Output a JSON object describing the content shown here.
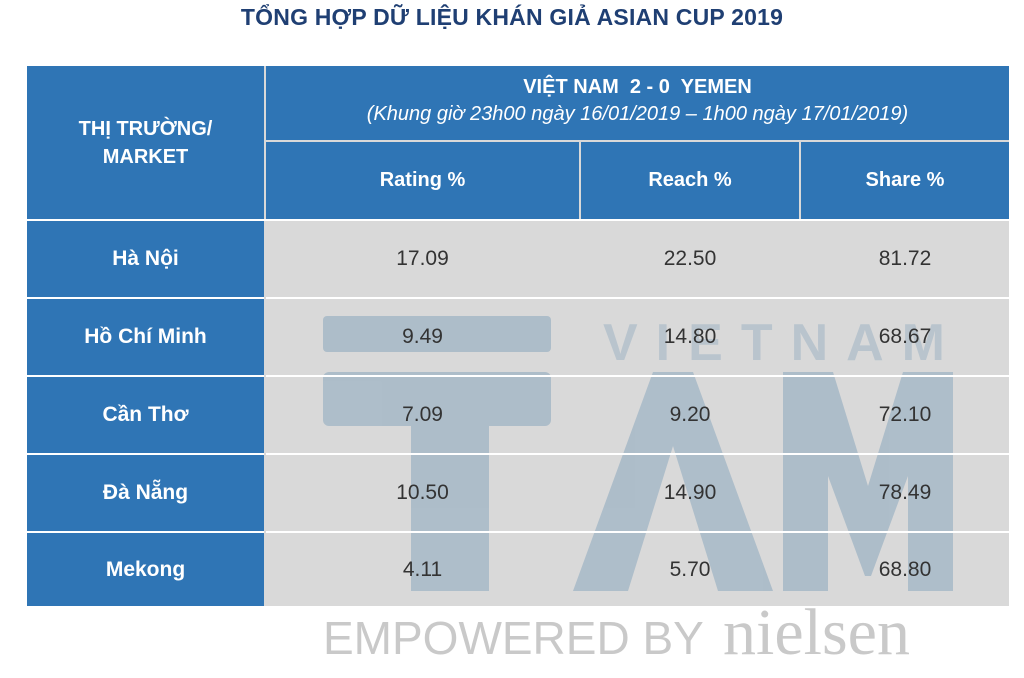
{
  "title": "TỔNG HỢP DỮ LIỆU KHÁN GIẢ ASIAN CUP 2019",
  "header": {
    "market_line1": "THỊ TRƯỜNG/",
    "market_line2": "MARKET",
    "match": "VIỆT NAM  2 - 0  YEMEN",
    "timeframe": "(Khung giờ 23h00 ngày 16/01/2019 – 1h00 ngày 17/01/2019)",
    "metrics": [
      "Rating %",
      "Reach %",
      "Share %"
    ]
  },
  "rows": [
    {
      "market": "Hà Nội",
      "rating": "17.09",
      "reach": "22.50",
      "share": "81.72"
    },
    {
      "market": "Hồ Chí Minh",
      "rating": "9.49",
      "reach": "14.80",
      "share": "68.67"
    },
    {
      "market": "Cần Thơ",
      "rating": "7.09",
      "reach": "9.20",
      "share": "72.10"
    },
    {
      "market": "Đà Nẵng",
      "rating": "10.50",
      "reach": "14.90",
      "share": "78.49"
    },
    {
      "market": "Mekong",
      "rating": "4.11",
      "reach": "5.70",
      "share": "68.80"
    }
  ],
  "watermark": {
    "brand": "TAM",
    "brand_sub": "VIETNAM",
    "empowered": "EMPOWERED BY",
    "partner": "nielsen"
  },
  "colors": {
    "header_blue": "#2f75b5",
    "label_blue": "#2e75b6",
    "title_navy": "#1f3f73",
    "body_gray": "#d9d9d9",
    "watermark": "#9fb4c4"
  }
}
